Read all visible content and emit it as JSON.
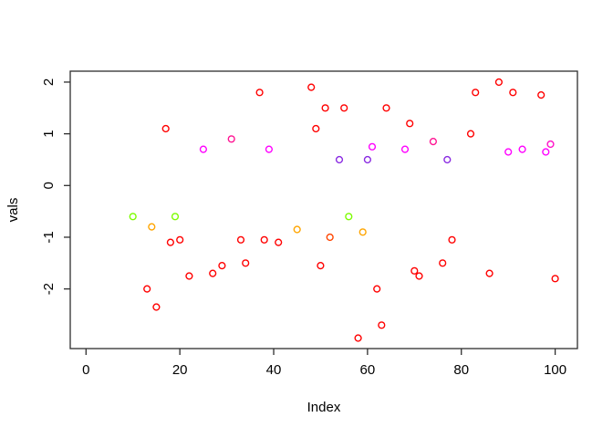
{
  "figure": {
    "background": "#FFFFFF",
    "box_color": "#2E2E2E"
  },
  "chart_data": {
    "type": "scatter",
    "title": "",
    "xlabel": "Index",
    "ylabel": "vals",
    "xlim": [
      0,
      100
    ],
    "ylim": [
      -3,
      2.1
    ],
    "x_ticks": [
      0,
      20,
      40,
      60,
      80,
      100
    ],
    "y_ticks": [
      -2,
      -1,
      0,
      1,
      2
    ],
    "grid": false,
    "legend": "none",
    "marker": "open-circle",
    "palette": {
      "r": "#FF0000",
      "g": "#7CFC00",
      "o": "#FFA500",
      "or": "#FF4500",
      "p": "#8A2BE2",
      "m": "#FF00FF",
      "dp": "#FF1493",
      "pm": "#FF10C8"
    },
    "points": [
      {
        "x": 10,
        "y": -0.6,
        "c": "g"
      },
      {
        "x": 13,
        "y": -2.0,
        "c": "r"
      },
      {
        "x": 14,
        "y": -0.8,
        "c": "o"
      },
      {
        "x": 15,
        "y": -2.35,
        "c": "r"
      },
      {
        "x": 17,
        "y": 1.1,
        "c": "r"
      },
      {
        "x": 18,
        "y": -1.1,
        "c": "r"
      },
      {
        "x": 19,
        "y": -0.6,
        "c": "g"
      },
      {
        "x": 20,
        "y": -1.05,
        "c": "r"
      },
      {
        "x": 22,
        "y": -1.75,
        "c": "r"
      },
      {
        "x": 25,
        "y": 0.7,
        "c": "m"
      },
      {
        "x": 27,
        "y": -1.7,
        "c": "r"
      },
      {
        "x": 29,
        "y": -1.55,
        "c": "r"
      },
      {
        "x": 31,
        "y": 0.9,
        "c": "dp"
      },
      {
        "x": 33,
        "y": -1.05,
        "c": "r"
      },
      {
        "x": 34,
        "y": -1.5,
        "c": "r"
      },
      {
        "x": 37,
        "y": 1.8,
        "c": "r"
      },
      {
        "x": 38,
        "y": -1.05,
        "c": "r"
      },
      {
        "x": 39,
        "y": 0.7,
        "c": "m"
      },
      {
        "x": 41,
        "y": -1.1,
        "c": "r"
      },
      {
        "x": 45,
        "y": -0.85,
        "c": "o"
      },
      {
        "x": 48,
        "y": 1.9,
        "c": "r"
      },
      {
        "x": 49,
        "y": 1.1,
        "c": "r"
      },
      {
        "x": 50,
        "y": -1.55,
        "c": "r"
      },
      {
        "x": 51,
        "y": 1.5,
        "c": "r"
      },
      {
        "x": 52,
        "y": -1.0,
        "c": "or"
      },
      {
        "x": 54,
        "y": 0.5,
        "c": "p"
      },
      {
        "x": 55,
        "y": 1.5,
        "c": "r"
      },
      {
        "x": 56,
        "y": -0.6,
        "c": "g"
      },
      {
        "x": 58,
        "y": -2.95,
        "c": "r"
      },
      {
        "x": 59,
        "y": -0.9,
        "c": "o"
      },
      {
        "x": 60,
        "y": 0.5,
        "c": "p"
      },
      {
        "x": 61,
        "y": 0.75,
        "c": "m"
      },
      {
        "x": 62,
        "y": -2.0,
        "c": "r"
      },
      {
        "x": 63,
        "y": -2.7,
        "c": "r"
      },
      {
        "x": 64,
        "y": 1.5,
        "c": "r"
      },
      {
        "x": 68,
        "y": 0.7,
        "c": "m"
      },
      {
        "x": 69,
        "y": 1.2,
        "c": "r"
      },
      {
        "x": 70,
        "y": -1.65,
        "c": "r"
      },
      {
        "x": 71,
        "y": -1.75,
        "c": "r"
      },
      {
        "x": 74,
        "y": 0.85,
        "c": "dp"
      },
      {
        "x": 76,
        "y": -1.5,
        "c": "r"
      },
      {
        "x": 77,
        "y": 0.5,
        "c": "p"
      },
      {
        "x": 78,
        "y": -1.05,
        "c": "r"
      },
      {
        "x": 82,
        "y": 1.0,
        "c": "r"
      },
      {
        "x": 83,
        "y": 1.8,
        "c": "r"
      },
      {
        "x": 86,
        "y": -1.7,
        "c": "r"
      },
      {
        "x": 88,
        "y": 2.0,
        "c": "r"
      },
      {
        "x": 90,
        "y": 0.65,
        "c": "m"
      },
      {
        "x": 91,
        "y": 1.8,
        "c": "r"
      },
      {
        "x": 93,
        "y": 0.7,
        "c": "m"
      },
      {
        "x": 97,
        "y": 1.75,
        "c": "r"
      },
      {
        "x": 98,
        "y": 0.65,
        "c": "m"
      },
      {
        "x": 99,
        "y": 0.8,
        "c": "pm"
      },
      {
        "x": 100,
        "y": -1.8,
        "c": "r"
      }
    ]
  }
}
